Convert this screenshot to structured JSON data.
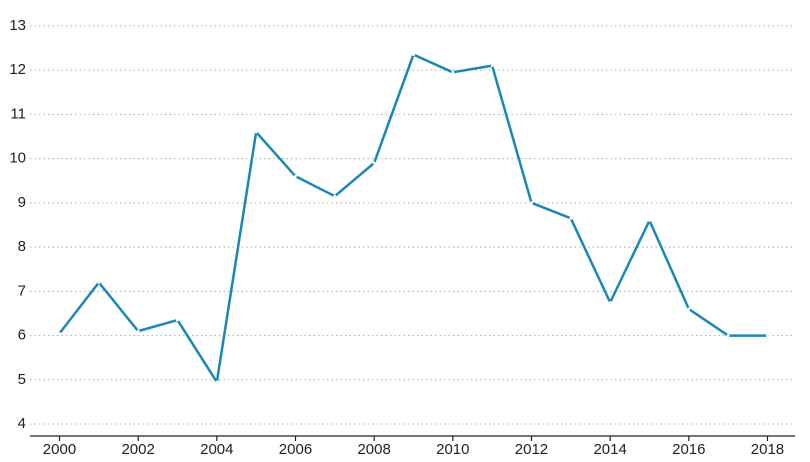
{
  "chart_data": {
    "type": "line",
    "x": [
      2000,
      2001,
      2002,
      2003,
      2004,
      2005,
      2006,
      2007,
      2008,
      2009,
      2010,
      2011,
      2012,
      2013,
      2014,
      2015,
      2016,
      2017,
      2018
    ],
    "series": [
      {
        "color": "#1a87b5",
        "values": [
          6.05,
          7.2,
          6.1,
          6.35,
          4.95,
          10.6,
          9.6,
          9.15,
          9.9,
          12.35,
          11.95,
          12.1,
          9.0,
          8.65,
          6.75,
          8.6,
          6.6,
          6.0,
          6.0
        ]
      }
    ],
    "xlim": [
      1999.25,
      2018.7
    ],
    "xticks": [
      2000,
      2002,
      2004,
      2006,
      2008,
      2010,
      2012,
      2014,
      2016,
      2018
    ],
    "ylim": [
      3.73,
      13.2
    ],
    "yticks": [
      4,
      5,
      6,
      7,
      8,
      9,
      10,
      11,
      12,
      13
    ],
    "grid": true
  }
}
